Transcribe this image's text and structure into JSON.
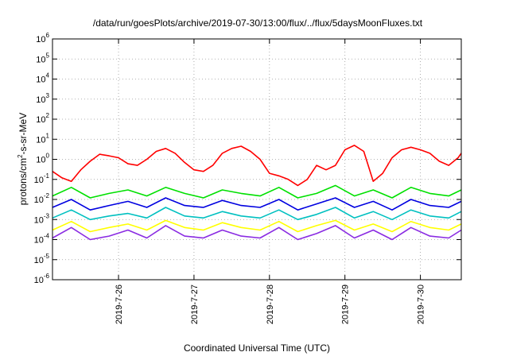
{
  "chart_data": {
    "type": "line",
    "title": "/data/run/goesPlots/archive/2019-07-30/13:00/flux/../flux/5daysMoonFluxes.txt",
    "xlabel": "Coordinated Universal Time (UTC)",
    "ylabel": "protons/cm²-s-sr-MeV",
    "y_scale": "log",
    "ylim": [
      1e-06,
      1000000.0
    ],
    "y_ticks": [
      {
        "value": 1e-06,
        "base": "10",
        "exp": "-6"
      },
      {
        "value": 1e-05,
        "base": "10",
        "exp": "-5"
      },
      {
        "value": 0.0001,
        "base": "10",
        "exp": "-4"
      },
      {
        "value": 0.001,
        "base": "10",
        "exp": "-3"
      },
      {
        "value": 0.01,
        "base": "10",
        "exp": "-2"
      },
      {
        "value": 0.1,
        "base": "10",
        "exp": "-1"
      },
      {
        "value": 1,
        "base": "10",
        "exp": "0"
      },
      {
        "value": 10,
        "base": "10",
        "exp": "1"
      },
      {
        "value": 100,
        "base": "10",
        "exp": "2"
      },
      {
        "value": 1000,
        "base": "10",
        "exp": "3"
      },
      {
        "value": 10000,
        "base": "10",
        "exp": "4"
      },
      {
        "value": 100000,
        "base": "10",
        "exp": "5"
      },
      {
        "value": 1000000,
        "base": "10",
        "exp": "6"
      }
    ],
    "xlim": [
      "2019-07-25 03:00",
      "2019-07-30 13:00"
    ],
    "x_ticks": [
      {
        "label": "2019-7-26",
        "value": "2019-07-26 00:00"
      },
      {
        "label": "2019-7-27",
        "value": "2019-07-27 00:00"
      },
      {
        "label": "2019-7-28",
        "value": "2019-07-28 00:00"
      },
      {
        "label": "2019-7-29",
        "value": "2019-07-29 00:00"
      },
      {
        "label": "2019-7-30",
        "value": "2019-07-30 00:00"
      }
    ],
    "grid": true,
    "series": [
      {
        "color": "#ff0000",
        "x": [
          "2019-07-25 03:00",
          "2019-07-25 06:00",
          "2019-07-25 09:00",
          "2019-07-25 12:00",
          "2019-07-25 15:00",
          "2019-07-25 18:00",
          "2019-07-25 21:00",
          "2019-07-26 00:00",
          "2019-07-26 03:00",
          "2019-07-26 06:00",
          "2019-07-26 09:00",
          "2019-07-26 12:00",
          "2019-07-26 15:00",
          "2019-07-26 18:00",
          "2019-07-26 21:00",
          "2019-07-27 00:00",
          "2019-07-27 03:00",
          "2019-07-27 06:00",
          "2019-07-27 09:00",
          "2019-07-27 12:00",
          "2019-07-27 15:00",
          "2019-07-27 18:00",
          "2019-07-27 21:00",
          "2019-07-28 00:00",
          "2019-07-28 03:00",
          "2019-07-28 06:00",
          "2019-07-28 09:00",
          "2019-07-28 12:00",
          "2019-07-28 15:00",
          "2019-07-28 18:00",
          "2019-07-28 21:00",
          "2019-07-29 00:00",
          "2019-07-29 03:00",
          "2019-07-29 06:00",
          "2019-07-29 09:00",
          "2019-07-29 12:00",
          "2019-07-29 15:00",
          "2019-07-29 18:00",
          "2019-07-29 21:00",
          "2019-07-30 00:00",
          "2019-07-30 03:00",
          "2019-07-30 06:00",
          "2019-07-30 09:00",
          "2019-07-30 12:00",
          "2019-07-30 13:00"
        ],
        "values": [
          0.25,
          0.12,
          0.08,
          0.3,
          0.8,
          1.8,
          1.5,
          1.2,
          0.6,
          0.5,
          1.0,
          2.5,
          3.5,
          2.0,
          0.7,
          0.3,
          0.25,
          0.5,
          2.0,
          3.5,
          4.5,
          2.5,
          1.0,
          0.2,
          0.15,
          0.1,
          0.05,
          0.1,
          0.5,
          0.3,
          0.5,
          3.0,
          5.0,
          2.5,
          0.08,
          0.2,
          1.2,
          3.0,
          4.0,
          3.0,
          2.0,
          0.8,
          0.5,
          1.2,
          2.0
        ]
      },
      {
        "color": "#00e000",
        "x": [
          "2019-07-25 03:00",
          "2019-07-25 09:00",
          "2019-07-25 15:00",
          "2019-07-25 21:00",
          "2019-07-26 03:00",
          "2019-07-26 09:00",
          "2019-07-26 15:00",
          "2019-07-26 21:00",
          "2019-07-27 03:00",
          "2019-07-27 09:00",
          "2019-07-27 15:00",
          "2019-07-27 21:00",
          "2019-07-28 03:00",
          "2019-07-28 09:00",
          "2019-07-28 15:00",
          "2019-07-28 21:00",
          "2019-07-29 03:00",
          "2019-07-29 09:00",
          "2019-07-29 15:00",
          "2019-07-29 21:00",
          "2019-07-30 03:00",
          "2019-07-30 09:00",
          "2019-07-30 13:00"
        ],
        "values": [
          0.015,
          0.04,
          0.012,
          0.02,
          0.03,
          0.015,
          0.04,
          0.02,
          0.012,
          0.03,
          0.02,
          0.015,
          0.04,
          0.012,
          0.02,
          0.05,
          0.015,
          0.03,
          0.012,
          0.04,
          0.02,
          0.015,
          0.03
        ]
      },
      {
        "color": "#0000e0",
        "x": [
          "2019-07-25 03:00",
          "2019-07-25 09:00",
          "2019-07-25 15:00",
          "2019-07-25 21:00",
          "2019-07-26 03:00",
          "2019-07-26 09:00",
          "2019-07-26 15:00",
          "2019-07-26 21:00",
          "2019-07-27 03:00",
          "2019-07-27 09:00",
          "2019-07-27 15:00",
          "2019-07-27 21:00",
          "2019-07-28 03:00",
          "2019-07-28 09:00",
          "2019-07-28 15:00",
          "2019-07-28 21:00",
          "2019-07-29 03:00",
          "2019-07-29 09:00",
          "2019-07-29 15:00",
          "2019-07-29 21:00",
          "2019-07-30 03:00",
          "2019-07-30 09:00",
          "2019-07-30 13:00"
        ],
        "values": [
          0.004,
          0.01,
          0.003,
          0.005,
          0.008,
          0.004,
          0.012,
          0.005,
          0.004,
          0.009,
          0.005,
          0.004,
          0.01,
          0.003,
          0.006,
          0.012,
          0.004,
          0.008,
          0.003,
          0.01,
          0.005,
          0.004,
          0.008
        ]
      },
      {
        "color": "#00c0c0",
        "x": [
          "2019-07-25 03:00",
          "2019-07-25 09:00",
          "2019-07-25 15:00",
          "2019-07-25 21:00",
          "2019-07-26 03:00",
          "2019-07-26 09:00",
          "2019-07-26 15:00",
          "2019-07-26 21:00",
          "2019-07-27 03:00",
          "2019-07-27 09:00",
          "2019-07-27 15:00",
          "2019-07-27 21:00",
          "2019-07-28 03:00",
          "2019-07-28 09:00",
          "2019-07-28 15:00",
          "2019-07-28 21:00",
          "2019-07-29 03:00",
          "2019-07-29 09:00",
          "2019-07-29 15:00",
          "2019-07-29 21:00",
          "2019-07-30 03:00",
          "2019-07-30 09:00",
          "2019-07-30 13:00"
        ],
        "values": [
          0.0012,
          0.003,
          0.001,
          0.0015,
          0.002,
          0.0012,
          0.004,
          0.0015,
          0.0012,
          0.0025,
          0.0015,
          0.0012,
          0.003,
          0.001,
          0.0018,
          0.004,
          0.0012,
          0.0025,
          0.001,
          0.003,
          0.0015,
          0.0012,
          0.0025
        ]
      },
      {
        "color": "#ffff00",
        "x": [
          "2019-07-25 03:00",
          "2019-07-25 09:00",
          "2019-07-25 15:00",
          "2019-07-25 21:00",
          "2019-07-26 03:00",
          "2019-07-26 09:00",
          "2019-07-26 15:00",
          "2019-07-26 21:00",
          "2019-07-27 03:00",
          "2019-07-27 09:00",
          "2019-07-27 15:00",
          "2019-07-27 21:00",
          "2019-07-28 03:00",
          "2019-07-28 09:00",
          "2019-07-28 15:00",
          "2019-07-28 21:00",
          "2019-07-29 03:00",
          "2019-07-29 09:00",
          "2019-07-29 15:00",
          "2019-07-29 21:00",
          "2019-07-30 03:00",
          "2019-07-30 09:00",
          "2019-07-30 13:00"
        ],
        "values": [
          0.0003,
          0.0008,
          0.00025,
          0.0004,
          0.0006,
          0.0003,
          0.0009,
          0.0004,
          0.0003,
          0.0007,
          0.0004,
          0.0003,
          0.0008,
          0.00025,
          0.0005,
          0.0009,
          0.0003,
          0.0006,
          0.00025,
          0.0008,
          0.0004,
          0.0003,
          0.0006
        ]
      },
      {
        "color": "#8a2be2",
        "x": [
          "2019-07-25 03:00",
          "2019-07-25 09:00",
          "2019-07-25 15:00",
          "2019-07-25 21:00",
          "2019-07-26 03:00",
          "2019-07-26 09:00",
          "2019-07-26 15:00",
          "2019-07-26 21:00",
          "2019-07-27 03:00",
          "2019-07-27 09:00",
          "2019-07-27 15:00",
          "2019-07-27 21:00",
          "2019-07-28 03:00",
          "2019-07-28 09:00",
          "2019-07-28 15:00",
          "2019-07-28 21:00",
          "2019-07-29 03:00",
          "2019-07-29 09:00",
          "2019-07-29 15:00",
          "2019-07-29 21:00",
          "2019-07-30 03:00",
          "2019-07-30 09:00",
          "2019-07-30 13:00"
        ],
        "values": [
          0.00012,
          0.0004,
          0.0001,
          0.00015,
          0.0003,
          0.00012,
          0.0005,
          0.00015,
          0.00012,
          0.0003,
          0.00015,
          0.00012,
          0.0004,
          0.0001,
          0.0002,
          0.0005,
          0.00012,
          0.0003,
          0.0001,
          0.0004,
          0.00015,
          0.00012,
          0.0003
        ]
      }
    ]
  }
}
